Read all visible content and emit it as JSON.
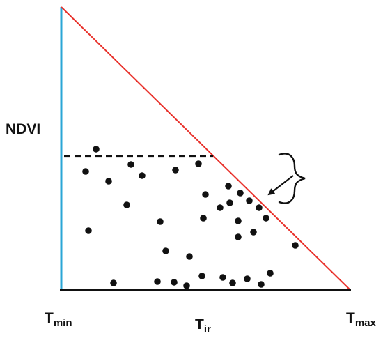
{
  "labels": {
    "y_axis": "NDVI",
    "t_min": {
      "base": "T",
      "sub": "min"
    },
    "t_ir": {
      "base": "T",
      "sub": "ir"
    },
    "t_max": {
      "base": "T",
      "sub": "max"
    }
  },
  "colors": {
    "wet_edge": "#2aa6d6",
    "dry_edge": "#e8312b",
    "baseline": "#111111",
    "threshold": "#111111",
    "points": "#111111",
    "arrow": "#111111"
  },
  "icons": {
    "bracket": "curly-brace-icon",
    "arrow": "arrow-icon"
  }
}
